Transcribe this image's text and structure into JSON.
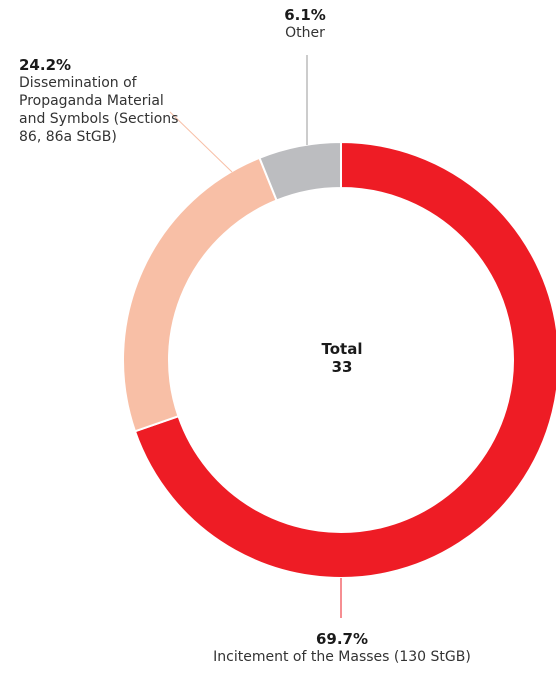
{
  "chart_data": {
    "type": "pie",
    "donut": true,
    "total_label": "Total",
    "total_value": "33",
    "slices": [
      {
        "label": "Incitement of the Masses (130 StGB)",
        "value": 69.7,
        "display": "69.7%",
        "color": "#ee1c25"
      },
      {
        "label": "Dissemination of Propaganda Material and Symbols (Sections 86, 86a StGB)",
        "value": 24.2,
        "display": "24.2%",
        "color": "#f8bfa6"
      },
      {
        "label": "Other",
        "value": 6.1,
        "display": "6.1%",
        "color": "#bcbdc0"
      }
    ]
  }
}
